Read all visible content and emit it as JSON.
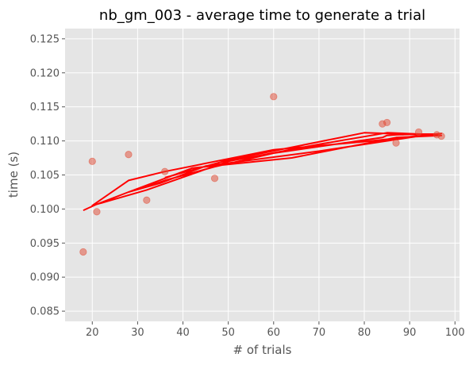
{
  "chart_data": {
    "type": "scatter",
    "title": "nb_gm_003 - average time to generate a trial",
    "xlabel": "# of trials",
    "ylabel": "time (s)",
    "xlim": [
      14,
      101
    ],
    "ylim": [
      0.0835,
      0.1265
    ],
    "xticks": [
      20,
      30,
      40,
      50,
      60,
      70,
      80,
      90,
      100
    ],
    "yticks": [
      0.085,
      0.09,
      0.095,
      0.1,
      0.105,
      0.11,
      0.115,
      0.12,
      0.125
    ],
    "grid": true,
    "legend": "none",
    "colors": {
      "background": "#e5e5e5",
      "grid": "#ffffff",
      "points": "#e24a33",
      "line": "#ff0000",
      "tick_text": "#555555"
    },
    "series": [
      {
        "kind": "scatter",
        "x": [
          18,
          20,
          21,
          28,
          32,
          36,
          47,
          60,
          84,
          85,
          87,
          92,
          96,
          97
        ],
        "y": [
          0.0937,
          0.107,
          0.0996,
          0.108,
          0.1013,
          0.1055,
          0.1045,
          0.1165,
          0.1125,
          0.1127,
          0.1097,
          0.1113,
          0.1109,
          0.1107
        ]
      },
      {
        "kind": "line",
        "x": [
          18,
          21,
          28,
          32,
          36,
          47,
          60,
          84,
          85,
          87,
          92,
          96,
          97,
          80,
          60,
          36,
          28,
          20,
          32,
          50,
          70,
          85,
          96,
          92,
          70,
          45,
          35,
          28,
          42,
          64,
          87,
          97,
          80,
          50,
          36
        ],
        "y": [
          0.0998,
          0.1007,
          0.1025,
          0.1033,
          0.1042,
          0.1062,
          0.1082,
          0.1105,
          0.1108,
          0.1109,
          0.111,
          0.111,
          0.1111,
          0.1099,
          0.1087,
          0.1055,
          0.1042,
          0.1005,
          0.1028,
          0.107,
          0.1095,
          0.1112,
          0.1109,
          0.1107,
          0.1085,
          0.1063,
          0.1038,
          0.1025,
          0.106,
          0.1075,
          0.1105,
          0.1108,
          0.1112,
          0.1072,
          0.1046
        ]
      }
    ]
  }
}
